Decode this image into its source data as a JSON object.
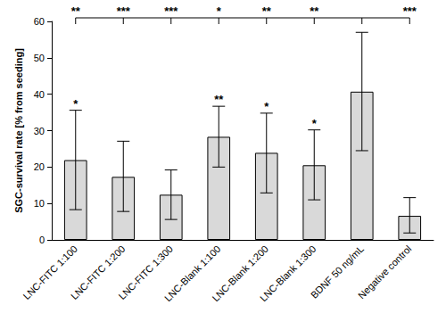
{
  "chart_data": {
    "type": "bar",
    "categories": [
      "LNC-FITC 1:100",
      "LNC-FITC 1:200",
      "LNC-FITC 1:300",
      "LNC-Blank 1:100",
      "LNC-Blank 1:200",
      "LNC-Blank 1:300",
      "BDNF 50 ng/mL",
      "Negative control"
    ],
    "values": [
      21.9,
      17.3,
      12.4,
      28.3,
      23.9,
      20.5,
      40.7,
      6.6
    ],
    "error_low": [
      8.3,
      7.8,
      5.6,
      20.0,
      12.9,
      11.0,
      24.5,
      1.9
    ],
    "error_high": [
      35.6,
      27.1,
      19.2,
      36.7,
      34.8,
      30.2,
      57.0,
      11.6
    ],
    "significance": [
      "*",
      null,
      null,
      "**",
      "*",
      "*",
      null,
      null
    ],
    "significance_vs_BDNF": [
      "**",
      "***",
      "***",
      "*",
      "**",
      "**",
      null,
      "***"
    ],
    "y_label": "SGC-survival rate [% from seeding]",
    "color": "#d9d9d9",
    "ylim": [
      0,
      60
    ],
    "yticks": [
      0,
      10,
      20,
      30,
      40,
      50,
      60
    ],
    "grid": false
  }
}
